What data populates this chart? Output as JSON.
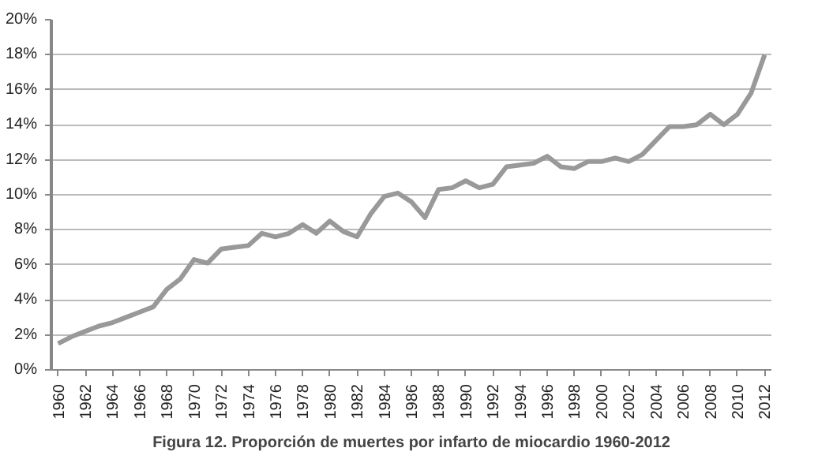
{
  "chart_data": {
    "type": "line",
    "title": "Figura 12. Proporción de muertes por infarto de miocardio 1960-2012",
    "x": [
      1960,
      1961,
      1962,
      1963,
      1964,
      1965,
      1966,
      1967,
      1968,
      1969,
      1970,
      1971,
      1972,
      1973,
      1974,
      1975,
      1976,
      1977,
      1978,
      1979,
      1980,
      1981,
      1982,
      1983,
      1984,
      1985,
      1986,
      1987,
      1988,
      1989,
      1990,
      1991,
      1992,
      1993,
      1994,
      1995,
      1996,
      1997,
      1998,
      1999,
      2000,
      2001,
      2002,
      2003,
      2004,
      2005,
      2006,
      2007,
      2008,
      2009,
      2010,
      2011,
      2012
    ],
    "series": [
      {
        "color": "#999999",
        "values": [
          1.5,
          1.9,
          2.2,
          2.5,
          2.7,
          3.0,
          3.3,
          3.6,
          4.6,
          5.2,
          6.3,
          6.1,
          6.9,
          7.0,
          7.1,
          7.8,
          7.6,
          7.8,
          8.3,
          7.8,
          8.5,
          7.9,
          7.6,
          8.9,
          9.9,
          10.1,
          9.6,
          8.7,
          10.3,
          10.4,
          10.8,
          10.4,
          10.6,
          11.6,
          11.7,
          11.8,
          12.2,
          11.6,
          11.5,
          11.9,
          11.9,
          12.1,
          11.9,
          12.3,
          13.1,
          13.9,
          13.9,
          14.0,
          14.6,
          14.0,
          14.6,
          15.8,
          18.0
        ]
      }
    ],
    "xlim": [
      1959.5,
      2012.5
    ],
    "xticks": [
      1960,
      1962,
      1964,
      1966,
      1968,
      1970,
      1972,
      1974,
      1976,
      1978,
      1980,
      1982,
      1984,
      1986,
      1988,
      1990,
      1992,
      1994,
      1996,
      1998,
      2000,
      2002,
      2004,
      2006,
      2008,
      2010,
      2012
    ],
    "ylim": [
      0,
      20
    ],
    "yticks": [
      {
        "value": 0,
        "label": "0%"
      },
      {
        "value": 2,
        "label": "2%"
      },
      {
        "value": 4,
        "label": "4%"
      },
      {
        "value": 6,
        "label": "6%"
      },
      {
        "value": 8,
        "label": "8%"
      },
      {
        "value": 10,
        "label": "10%"
      },
      {
        "value": 12,
        "label": "12%"
      },
      {
        "value": 14,
        "label": "14%"
      },
      {
        "value": 16,
        "label": "16%"
      },
      {
        "value": 18,
        "label": "18%"
      },
      {
        "value": 20,
        "label": "20%"
      }
    ],
    "grid": "y",
    "marker": "none",
    "line_style": "solid"
  }
}
